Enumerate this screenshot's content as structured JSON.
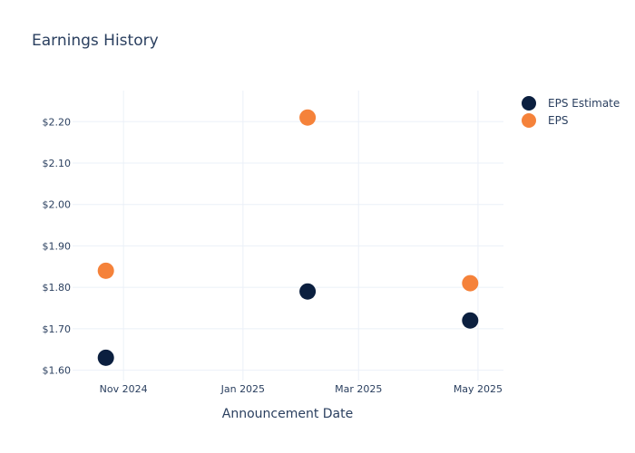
{
  "chart_data": {
    "type": "scatter",
    "title": "Earnings History",
    "xlabel": "Announcement Date",
    "ylabel": "",
    "x_axis": {
      "type": "date",
      "range": [
        "2024-10-06",
        "2025-05-14"
      ],
      "ticks": [
        {
          "date": "2024-11-01",
          "label": "Nov 2024"
        },
        {
          "date": "2025-01-01",
          "label": "Jan 2025"
        },
        {
          "date": "2025-03-01",
          "label": "Mar 2025"
        },
        {
          "date": "2025-05-01",
          "label": "May 2025"
        }
      ]
    },
    "y_axis": {
      "range": [
        1.575,
        2.275
      ],
      "ticks": [
        {
          "value": 1.6,
          "label": "$1.60"
        },
        {
          "value": 1.7,
          "label": "$1.70"
        },
        {
          "value": 1.8,
          "label": "$1.80"
        },
        {
          "value": 1.9,
          "label": "$1.90"
        },
        {
          "value": 2.0,
          "label": "$2.00"
        },
        {
          "value": 2.1,
          "label": "$2.10"
        },
        {
          "value": 2.2,
          "label": "$2.20"
        }
      ]
    },
    "grid": true,
    "legend_position": "top-right",
    "series": [
      {
        "name": "EPS Estimate",
        "color": "#0b1f3f",
        "points": [
          {
            "x": "2024-10-23",
            "y": 1.63
          },
          {
            "x": "2025-02-03",
            "y": 1.79
          },
          {
            "x": "2025-04-27",
            "y": 1.72
          }
        ]
      },
      {
        "name": "EPS",
        "color": "#f5823a",
        "points": [
          {
            "x": "2024-10-23",
            "y": 1.84
          },
          {
            "x": "2025-02-03",
            "y": 2.21
          },
          {
            "x": "2025-04-27",
            "y": 1.81
          }
        ]
      }
    ]
  }
}
